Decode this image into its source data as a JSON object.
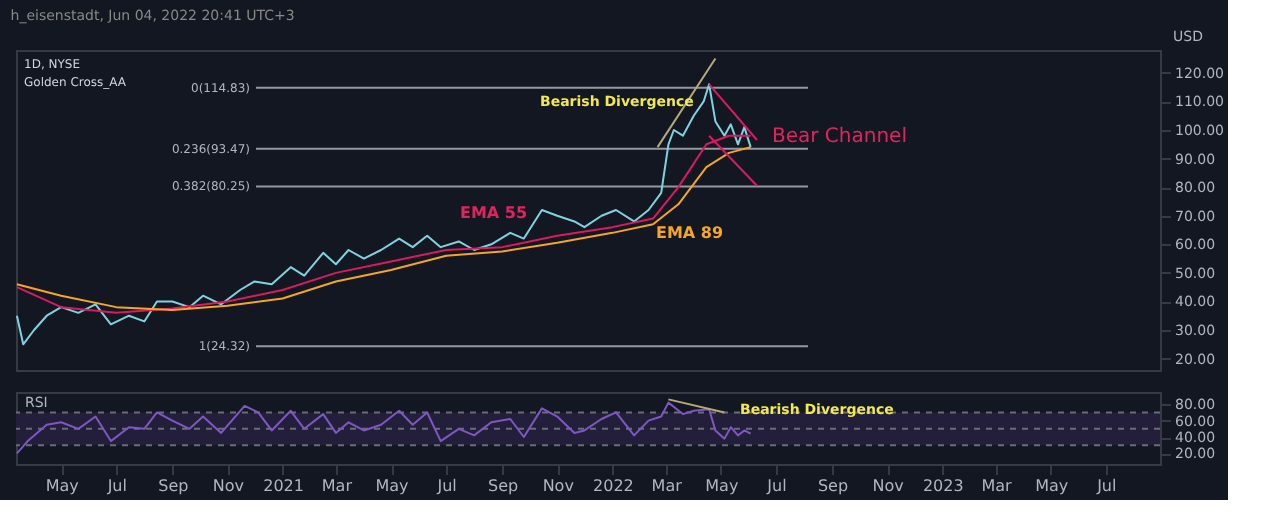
{
  "chart_data": [
    {
      "type": "line",
      "title": "h_eisenstadt, Jun 04, 2022 20:41 UTC+3",
      "ylabel": "USD",
      "tick_labels": "y",
      "annotations": [
        "1D, NYSE",
        "Golden Cross_AA",
        "Bearish Divergence",
        "Bear Channel",
        "EMA 55",
        "EMA 89"
      ],
      "xlim": [
        "2020-03-12",
        "2023-08-30"
      ],
      "ylim": [
        16,
        128
      ],
      "yticks": [
        {
          "value": 20,
          "label": "20.00"
        },
        {
          "value": 30,
          "label": "30.00"
        },
        {
          "value": 40,
          "label": "40.00"
        },
        {
          "value": 50,
          "label": "50.00"
        },
        {
          "value": 60,
          "label": "60.00"
        },
        {
          "value": 70,
          "label": "70.00"
        },
        {
          "value": 80,
          "label": "80.00"
        },
        {
          "value": 90,
          "label": "90.00"
        },
        {
          "value": 100,
          "label": "100.00"
        },
        {
          "value": 110,
          "label": "110.00"
        },
        {
          "value": 120,
          "label": "120.00"
        }
      ],
      "ref_lines": [
        {
          "axis": "y",
          "value": 114.83,
          "label": "0(114.83)",
          "color": "#9598a1"
        },
        {
          "axis": "y",
          "value": 93.47,
          "label": "0.236(93.47)",
          "color": "#9598a1"
        },
        {
          "axis": "y",
          "value": 80.25,
          "label": "0.382(80.25)",
          "color": "#9598a1"
        },
        {
          "axis": "y",
          "value": 24.32,
          "label": "1(24.32)",
          "color": "#9598a1"
        }
      ],
      "series": [
        {
          "color": "#7fd3e0",
          "x": [
            "2020-03-13",
            "2020-03-20",
            "2020-04-01",
            "2020-04-15",
            "2020-05-01",
            "2020-05-20",
            "2020-06-08",
            "2020-06-25",
            "2020-07-15",
            "2020-08-01",
            "2020-08-15",
            "2020-09-01",
            "2020-09-20",
            "2020-10-05",
            "2020-10-25",
            "2020-11-15",
            "2020-12-01",
            "2020-12-20",
            "2021-01-10",
            "2021-01-25",
            "2021-02-15",
            "2021-03-01",
            "2021-03-15",
            "2021-04-01",
            "2021-04-20",
            "2021-05-10",
            "2021-05-25",
            "2021-06-10",
            "2021-06-25",
            "2021-07-15",
            "2021-08-01",
            "2021-08-20",
            "2021-09-10",
            "2021-09-25",
            "2021-10-15",
            "2021-11-01",
            "2021-11-20",
            "2021-12-01",
            "2021-12-20",
            "2022-01-05",
            "2022-01-25",
            "2022-02-10",
            "2022-02-24",
            "2022-03-04",
            "2022-03-10",
            "2022-03-20",
            "2022-04-01",
            "2022-04-12",
            "2022-04-18",
            "2022-04-25",
            "2022-05-05",
            "2022-05-12",
            "2022-05-20",
            "2022-05-27",
            "2022-06-03"
          ],
          "values": [
            35,
            25,
            30,
            35,
            38,
            36,
            39,
            32,
            35,
            33,
            40,
            40,
            38,
            42,
            39,
            44,
            47,
            46,
            52,
            49,
            57,
            53,
            58,
            55,
            58,
            62,
            59,
            63,
            59,
            61,
            58,
            60,
            64,
            62,
            72,
            70,
            68,
            66,
            70,
            72,
            68,
            72,
            78,
            95,
            100,
            98,
            105,
            110,
            116,
            103,
            98,
            102,
            95,
            101,
            94
          ]
        },
        {
          "color": "#d81b60",
          "x": [
            "2020-03-13",
            "2020-05-01",
            "2020-07-01",
            "2020-09-01",
            "2020-11-01",
            "2021-01-01",
            "2021-03-01",
            "2021-05-01",
            "2021-07-01",
            "2021-09-01",
            "2021-11-01",
            "2022-01-01",
            "2022-02-15",
            "2022-03-15",
            "2022-04-15",
            "2022-05-10",
            "2022-06-03"
          ],
          "values": [
            45,
            38,
            36,
            37.5,
            40,
            44,
            50,
            54,
            58,
            59,
            63,
            66,
            69,
            80,
            95,
            98,
            98
          ]
        },
        {
          "color": "#f5a623",
          "x": [
            "2020-03-13",
            "2020-05-01",
            "2020-07-01",
            "2020-09-01",
            "2020-11-01",
            "2021-01-01",
            "2021-03-01",
            "2021-05-01",
            "2021-07-01",
            "2021-09-01",
            "2021-11-01",
            "2022-01-01",
            "2022-02-15",
            "2022-03-15",
            "2022-04-15",
            "2022-05-10",
            "2022-06-03"
          ],
          "values": [
            46,
            42,
            38,
            37,
            38.5,
            41,
            47,
            51,
            56,
            57.5,
            60.5,
            64,
            67,
            74,
            87,
            92,
            94
          ]
        },
        {
          "color": "#b8a878",
          "x": [
            "2022-02-20",
            "2022-04-25"
          ],
          "values": [
            94,
            125
          ]
        },
        {
          "color": "#d81b60",
          "x": [
            "2022-04-18",
            "2022-06-10"
          ],
          "values": [
            116,
            96.5
          ]
        },
        {
          "color": "#d81b60",
          "x": [
            "2022-04-18",
            "2022-06-10"
          ],
          "values": [
            98,
            80.5
          ]
        }
      ]
    },
    {
      "type": "line",
      "ylabel": "RSI",
      "annotations": [
        "Bearish Divergence"
      ],
      "xlim": [
        "2020-03-12",
        "2023-08-30"
      ],
      "xticks": [
        {
          "value": "2020-05-01",
          "label": "May"
        },
        {
          "value": "2020-07-01",
          "label": "Jul"
        },
        {
          "value": "2020-09-01",
          "label": "Sep"
        },
        {
          "value": "2020-11-01",
          "label": "Nov"
        },
        {
          "value": "2021-01-01",
          "label": "2021"
        },
        {
          "value": "2021-03-01",
          "label": "Mar"
        },
        {
          "value": "2021-05-01",
          "label": "May"
        },
        {
          "value": "2021-07-01",
          "label": "Jul"
        },
        {
          "value": "2021-09-01",
          "label": "Sep"
        },
        {
          "value": "2021-11-01",
          "label": "Nov"
        },
        {
          "value": "2022-01-01",
          "label": "2022"
        },
        {
          "value": "2022-03-01",
          "label": "Mar"
        },
        {
          "value": "2022-05-01",
          "label": "May"
        },
        {
          "value": "2022-07-01",
          "label": "Jul"
        },
        {
          "value": "2022-09-01",
          "label": "Sep"
        },
        {
          "value": "2022-11-01",
          "label": "Nov"
        },
        {
          "value": "2023-01-01",
          "label": "2023"
        },
        {
          "value": "2023-03-01",
          "label": "Mar"
        },
        {
          "value": "2023-05-01",
          "label": "May"
        },
        {
          "value": "2023-07-01",
          "label": "Jul"
        }
      ],
      "ylim": [
        7,
        95
      ],
      "yticks": [
        {
          "value": 20,
          "label": "20.00"
        },
        {
          "value": 40,
          "label": "40.00"
        },
        {
          "value": 60,
          "label": "60.00"
        },
        {
          "value": 80,
          "label": "80.00"
        }
      ],
      "bands": [
        {
          "axis": "y",
          "from": 30,
          "to": 70,
          "color": "#231f3a"
        }
      ],
      "ref_lines": [
        {
          "axis": "y",
          "value": 70,
          "color": "#6a6d78",
          "line_style": "dashed"
        },
        {
          "axis": "y",
          "value": 50,
          "color": "#6a6d78",
          "line_style": "dashed"
        },
        {
          "axis": "y",
          "value": 30,
          "color": "#6a6d78",
          "line_style": "dashed"
        }
      ],
      "series": [
        {
          "color": "#7e57c2",
          "x": [
            "2020-03-13",
            "2020-03-25",
            "2020-04-15",
            "2020-05-01",
            "2020-05-20",
            "2020-06-08",
            "2020-06-25",
            "2020-07-15",
            "2020-08-01",
            "2020-08-15",
            "2020-09-01",
            "2020-09-20",
            "2020-10-05",
            "2020-10-25",
            "2020-11-20",
            "2020-12-05",
            "2020-12-20",
            "2021-01-10",
            "2021-01-25",
            "2021-02-15",
            "2021-03-01",
            "2021-03-15",
            "2021-04-01",
            "2021-04-20",
            "2021-05-10",
            "2021-05-25",
            "2021-06-10",
            "2021-06-25",
            "2021-07-15",
            "2021-08-01",
            "2021-08-20",
            "2021-09-10",
            "2021-09-25",
            "2021-10-15",
            "2021-11-01",
            "2021-11-20",
            "2021-12-01",
            "2021-12-20",
            "2022-01-05",
            "2022-01-25",
            "2022-02-10",
            "2022-02-24",
            "2022-03-04",
            "2022-03-20",
            "2022-04-01",
            "2022-04-18",
            "2022-04-25",
            "2022-05-05",
            "2022-05-12",
            "2022-05-20",
            "2022-05-27",
            "2022-06-03"
          ],
          "values": [
            20,
            35,
            55,
            58,
            50,
            65,
            35,
            52,
            50,
            70,
            60,
            50,
            65,
            45,
            78,
            70,
            48,
            72,
            50,
            68,
            45,
            58,
            48,
            55,
            72,
            55,
            70,
            35,
            50,
            42,
            58,
            62,
            40,
            75,
            65,
            45,
            48,
            62,
            70,
            42,
            60,
            65,
            82,
            68,
            72,
            74,
            48,
            38,
            52,
            42,
            48,
            44
          ]
        },
        {
          "color": "#b8a878",
          "x": [
            "2022-03-04",
            "2022-05-05"
          ],
          "values": [
            86,
            70
          ]
        }
      ]
    }
  ]
}
